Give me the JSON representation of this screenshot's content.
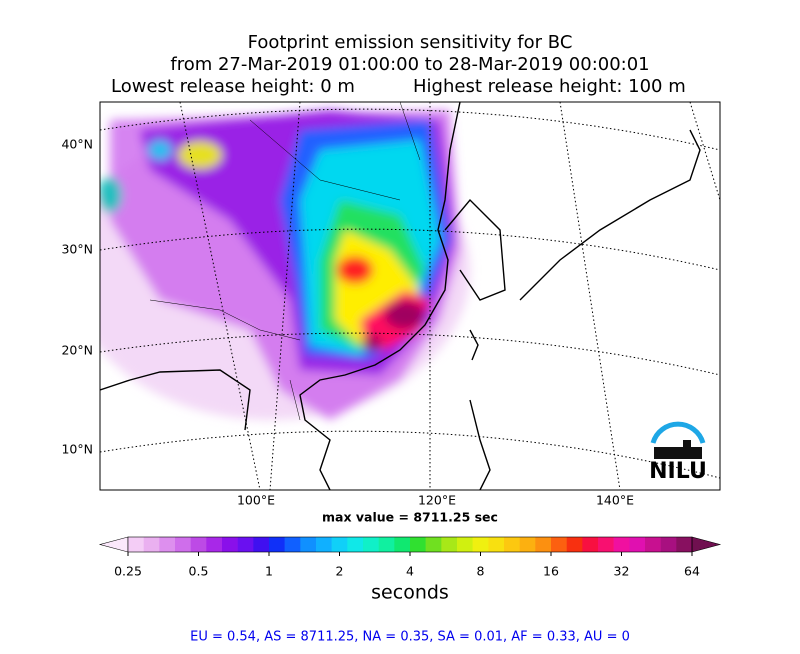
{
  "title": {
    "line1": "Footprint emission sensitivity for BC",
    "line2": "from 27-Mar-2019 01:00:00 to 28-Mar-2019 00:00:01",
    "left": "Lowest release height: 0 m",
    "right": "Highest release height: 100 m"
  },
  "map": {
    "lat_labels": [
      "40°N",
      "30°N",
      "20°N",
      "10°N"
    ],
    "lon_labels": [
      "100°E",
      "120°E",
      "140°E"
    ],
    "max_value": "max value = 8711.25 sec",
    "logo": "NILU"
  },
  "colorbar": {
    "ticks": [
      "0.25",
      "0.5",
      "1",
      "2",
      "4",
      "8",
      "16",
      "32",
      "64"
    ],
    "label": "seconds"
  },
  "footer": "EU = 0.54,  AS = 8711.25,  NA = 0.35,  SA = 0.01,  AF = 0.33,  AU = 0"
}
